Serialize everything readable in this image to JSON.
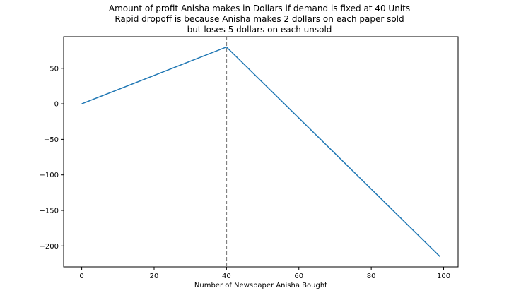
{
  "chart_data": {
    "type": "line",
    "title_lines": [
      "Amount of profit Anisha makes in Dollars if demand is fixed at 40 Units",
      "Rapid dropoff is because Anisha makes 2 dollars on each paper sold",
      "but loses 5 dollars on each unsold"
    ],
    "xlabel": "Number of Newspaper Anisha Bought",
    "ylabel": "",
    "xlim": [
      -5,
      104
    ],
    "ylim": [
      -229.5,
      94.5
    ],
    "xticks": [
      0,
      20,
      40,
      60,
      80,
      100
    ],
    "yticks": [
      50,
      0,
      -50,
      -100,
      -150,
      -200
    ],
    "ytick_labels": [
      "50",
      "0",
      "−50",
      "−100",
      "−150",
      "−200"
    ],
    "series": [
      {
        "x": [
          0,
          40,
          99
        ],
        "y": [
          0,
          80,
          -215
        ],
        "color": "#1f77b4"
      }
    ],
    "vline": {
      "x": 40,
      "color": "#808080",
      "style": "dashed"
    },
    "grid": false,
    "legend": "none"
  }
}
